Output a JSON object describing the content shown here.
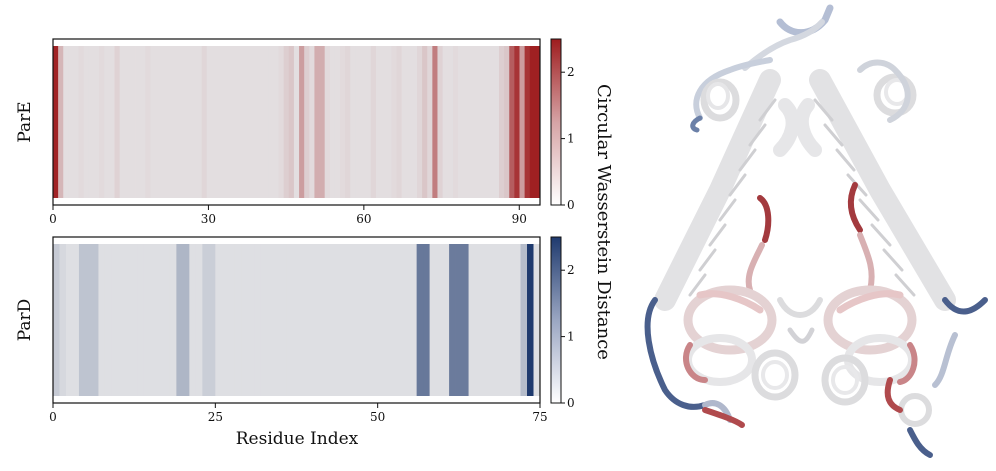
{
  "chart_data": [
    {
      "type": "heatmap",
      "ylabel": "ParE",
      "xlabel": "",
      "xticks": [
        "0",
        "30",
        "60",
        "90"
      ],
      "xlim": [
        0,
        94
      ],
      "colormap": {
        "low": "#ffffff",
        "high": "#9e1c1e"
      },
      "colorbar": {
        "ticks": [
          "0",
          "1",
          "2"
        ],
        "range": [
          0,
          2.5
        ]
      },
      "values": [
        2.4,
        0.6,
        0.1,
        0.1,
        0.1,
        0.15,
        0.1,
        0.1,
        0.1,
        0.15,
        0.1,
        0.1,
        0.25,
        0.1,
        0.1,
        0.1,
        0.1,
        0.1,
        0.15,
        0.1,
        0.1,
        0.1,
        0.1,
        0.1,
        0.1,
        0.1,
        0.1,
        0.1,
        0.1,
        0.2,
        0.1,
        0.1,
        0.1,
        0.1,
        0.1,
        0.1,
        0.1,
        0.1,
        0.1,
        0.1,
        0.1,
        0.1,
        0.1,
        0.1,
        0.15,
        0.3,
        0.4,
        0.1,
        0.9,
        0.3,
        0.15,
        0.7,
        0.7,
        0.15,
        0.1,
        0.1,
        0.15,
        0.2,
        0.1,
        0.1,
        0.1,
        0.1,
        0.2,
        0.1,
        0.1,
        0.1,
        0.15,
        0.2,
        0.1,
        0.1,
        0.1,
        0.2,
        0.4,
        0.2,
        1.3,
        0.25,
        0.1,
        0.1,
        0.15,
        0.1,
        0.1,
        0.1,
        0.1,
        0.1,
        0.1,
        0.1,
        0.1,
        0.3,
        0.4,
        1.7,
        2.2,
        0.9,
        2.2,
        2.45,
        2.45
      ]
    },
    {
      "type": "heatmap",
      "ylabel": "ParD",
      "xlabel": "Residue Index",
      "xticks": [
        "0",
        "25",
        "50",
        "75"
      ],
      "xlim": [
        0,
        75
      ],
      "colormap": {
        "low": "#ffffff",
        "high": "#1f3a6e"
      },
      "colorbar": {
        "ticks": [
          "0",
          "1",
          "2"
        ],
        "range": [
          0,
          2.5
        ]
      },
      "values": [
        0.4,
        0.2,
        0.1,
        0.1,
        0.5,
        0.5,
        0.5,
        0.1,
        0.1,
        0.1,
        0.1,
        0.1,
        0.1,
        0.1,
        0.1,
        0.1,
        0.1,
        0.1,
        0.1,
        0.7,
        0.7,
        0.1,
        0.1,
        0.35,
        0.35,
        0.1,
        0.1,
        0.1,
        0.1,
        0.1,
        0.1,
        0.1,
        0.1,
        0.1,
        0.1,
        0.1,
        0.1,
        0.1,
        0.1,
        0.1,
        0.1,
        0.1,
        0.1,
        0.1,
        0.1,
        0.1,
        0.1,
        0.1,
        0.1,
        0.1,
        0.1,
        0.1,
        0.1,
        0.1,
        0.1,
        0.1,
        1.6,
        1.6,
        0.1,
        0.1,
        0.1,
        1.55,
        1.55,
        1.55,
        0.1,
        0.1,
        0.1,
        0.1,
        0.1,
        0.1,
        0.1,
        0.1,
        0.6,
        2.5,
        0.1
      ]
    }
  ],
  "colorbar_label": "Circular Wasserstein Distance",
  "structure_image": "protein-ribbon-structure"
}
